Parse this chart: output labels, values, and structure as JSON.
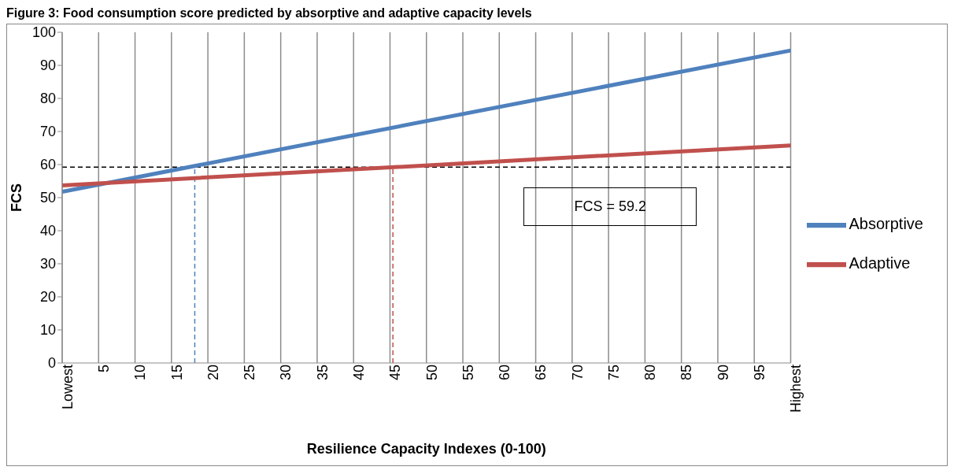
{
  "chart_data": {
    "type": "line",
    "title": "Figure 3: Food consumption score predicted by absorptive and adaptive capacity levels",
    "xlabel": "Resilience Capacity Indexes (0-100)",
    "ylabel": "FCS",
    "x": [
      0,
      100
    ],
    "series": [
      {
        "name": "Absorptive",
        "color": "#4f81bd",
        "values": [
          51.8,
          94.5
        ]
      },
      {
        "name": "Adaptive",
        "color": "#c0504d",
        "values": [
          53.7,
          65.8
        ]
      }
    ],
    "xlim": [
      0,
      100
    ],
    "xticks": [
      {
        "value": 0,
        "label": "Lowest"
      },
      5,
      10,
      15,
      20,
      25,
      30,
      35,
      40,
      45,
      50,
      55,
      60,
      65,
      70,
      75,
      80,
      85,
      90,
      95,
      {
        "value": 100,
        "label": "Highest"
      }
    ],
    "ylim": [
      0,
      100
    ],
    "yticks": [
      0,
      10,
      20,
      30,
      40,
      50,
      60,
      70,
      80,
      90,
      100
    ],
    "ref_lines": [
      {
        "axis": "y",
        "value": 59.2,
        "color": "#000000",
        "line_style": "dashed"
      },
      {
        "axis": "x",
        "value": 18.2,
        "color": "#4f81bd",
        "line_style": "dashed"
      },
      {
        "axis": "x",
        "value": 45.4,
        "color": "#c0504d",
        "line_style": "dashed"
      }
    ],
    "annotations": [
      "FCS = 59.2"
    ],
    "grid": "x",
    "legend": "right",
    "marker": "none",
    "line_style": "solid"
  }
}
